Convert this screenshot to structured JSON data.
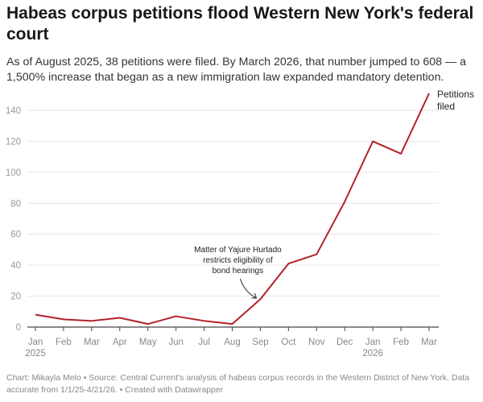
{
  "title": "Habeas corpus petitions flood Western New York's federal court",
  "subtitle": "As of August 2025, 38 petitions were filed. By March 2026, that number jumped to 608 — a 1,500% increase that began as a new immigration law expanded mandatory detention.",
  "footer": "Chart: Mikayla Melo • Source: Central Current's analysis of habeas corpus records in the Western District of New York. Data accurate from 1/1/25-4/21/26. • Created with Datawrapper",
  "chart_data": {
    "type": "line",
    "categories": [
      "Jan",
      "Feb",
      "Mar",
      "Apr",
      "May",
      "Jun",
      "Jul",
      "Aug",
      "Sep",
      "Oct",
      "Nov",
      "Dec",
      "Jan",
      "Feb",
      "Mar"
    ],
    "year_labels": [
      {
        "index": 0,
        "label": "2025"
      },
      {
        "index": 12,
        "label": "2026"
      }
    ],
    "series": [
      {
        "name": "Petitions filed",
        "label_lines": [
          "Petitions",
          "filed"
        ],
        "color": "#b2222a",
        "values": [
          8,
          5,
          4,
          6,
          2,
          7,
          4,
          2,
          18,
          41,
          47,
          81,
          120,
          112,
          151
        ]
      }
    ],
    "yticks": [
      0,
      20,
      40,
      60,
      80,
      100,
      120,
      140
    ],
    "ylim": [
      0,
      151
    ],
    "grid": true,
    "annotation": {
      "index": 8,
      "lines": [
        "Matter of Yajure Hurtado",
        "restricts eligibility of",
        "bond hearings"
      ]
    }
  }
}
